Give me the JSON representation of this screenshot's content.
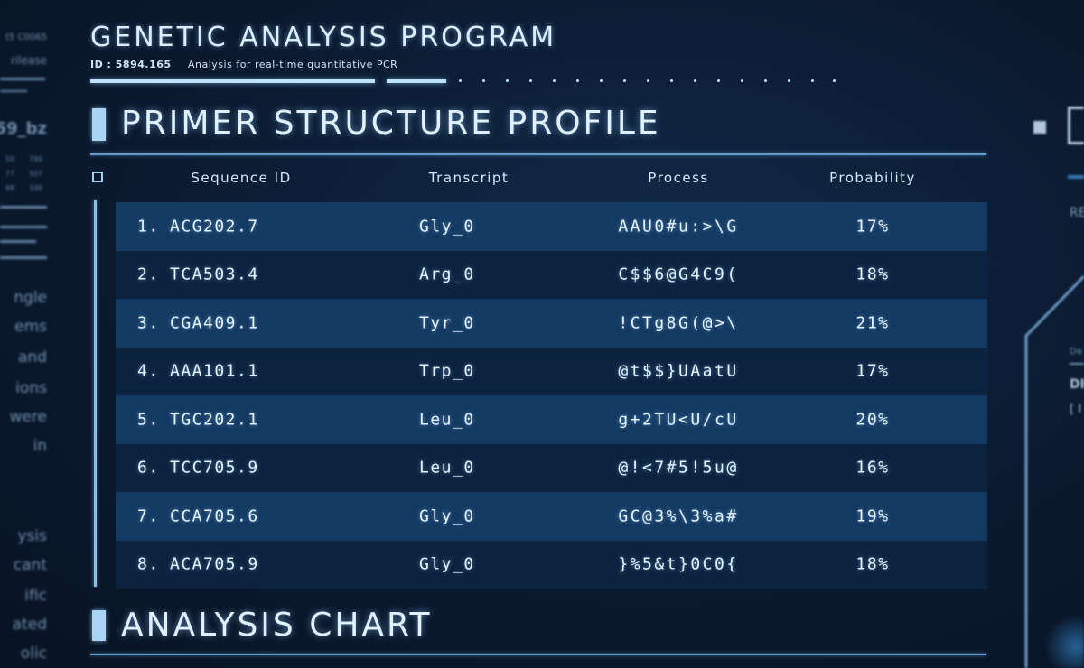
{
  "header": {
    "title": "GENETIC ANALYSIS PROGRAM",
    "id_label": "ID : 5894.165",
    "subtitle": "Analysis for real-time quantitative PCR"
  },
  "left_panel": {
    "texts": [
      "t5 C0065",
      "rilease",
      "59_bz",
      "ngle",
      "ems",
      "and",
      "ions",
      "were",
      "in",
      "ysis",
      "cant",
      "ific",
      "ated",
      "olic"
    ],
    "numbers": [
      "50",
      "790",
      "77",
      "507",
      "98",
      "100"
    ]
  },
  "primer_section": {
    "title": "PRIMER STRUCTURE PROFILE"
  },
  "table": {
    "columns": {
      "sequence_id": "Sequence ID",
      "transcript": "Transcript",
      "process": "Process",
      "probability": "Probability"
    },
    "rows": [
      {
        "index": "1.",
        "sequence_id": "ACG202.7",
        "transcript": "Gly_0",
        "process": "AAU0#u:>\\G",
        "probability": "17%"
      },
      {
        "index": "2.",
        "sequence_id": "TCA503.4",
        "transcript": "Arg_0",
        "process": "C$$6@G4C9(",
        "probability": "18%"
      },
      {
        "index": "3.",
        "sequence_id": "CGA409.1",
        "transcript": "Tyr_0",
        "process": "!CTg8G(@>\\",
        "probability": "21%"
      },
      {
        "index": "4.",
        "sequence_id": "AAA101.1",
        "transcript": "Trp_0",
        "process": "@t$$}UAatU",
        "probability": "17%"
      },
      {
        "index": "5.",
        "sequence_id": "TGC202.1",
        "transcript": "Leu_0",
        "process": "g+2TU<U/cU",
        "probability": "20%"
      },
      {
        "index": "6.",
        "sequence_id": "TCC705.9",
        "transcript": "Leu_0",
        "process": "@!<7#5!5u@",
        "probability": "16%"
      },
      {
        "index": "7.",
        "sequence_id": "CCA705.6",
        "transcript": "Gly_0",
        "process": "GC@3%\\3%a#",
        "probability": "19%"
      },
      {
        "index": "8.",
        "sequence_id": "ACA705.9",
        "transcript": "Gly_0",
        "process": "}%5&t}0C0{",
        "probability": "18%"
      }
    ]
  },
  "chart_section": {
    "title": "ANALYSIS CHART"
  },
  "right_panel": {
    "texts": [
      "RE",
      "Da",
      "DI",
      "[ I"
    ]
  },
  "colors": {
    "background": "#0a1628",
    "row_light": "#143a63",
    "row_dark": "#0c2340",
    "text": "#e6f4fe",
    "accent": "#a9d4f4"
  }
}
